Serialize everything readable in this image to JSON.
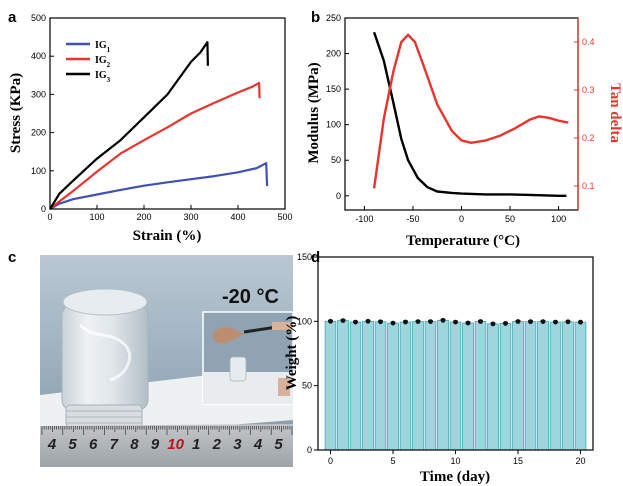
{
  "panels": {
    "a": "a",
    "b": "b",
    "c": "c",
    "d": "d"
  },
  "photo": {
    "temperature_label": "-20 °C",
    "ruler_numbers": [
      "4",
      "5",
      "6",
      "7",
      "8",
      "9",
      "10",
      "1",
      "2",
      "3",
      "4",
      "5"
    ]
  },
  "colors": {
    "ig1": "#3f51b5",
    "ig2": "#e8342e",
    "ig3": "#000000",
    "modulus": "#000000",
    "tandelta": "#e8342e",
    "bar_fill": "#9fd6de",
    "bar_stroke": "#3aa6b4"
  },
  "chart_data": [
    {
      "panel": "a",
      "type": "line",
      "xlabel": "Strain (%)",
      "ylabel": "Stress (KPa)",
      "xlim": [
        0,
        500
      ],
      "ylim": [
        0,
        500
      ],
      "xticks": [
        0,
        100,
        200,
        300,
        400,
        500
      ],
      "yticks": [
        0,
        100,
        200,
        300,
        400,
        500
      ],
      "legend": "top-left",
      "series": [
        {
          "name": "IG1",
          "name_base": "IG",
          "name_sub": "1",
          "color": "#3f51b5",
          "points": [
            [
              0,
              0
            ],
            [
              20,
              14
            ],
            [
              50,
              26
            ],
            [
              100,
              38
            ],
            [
              150,
              50
            ],
            [
              200,
              61
            ],
            [
              250,
              70
            ],
            [
              300,
              78
            ],
            [
              350,
              86
            ],
            [
              400,
              96
            ],
            [
              440,
              107
            ],
            [
              460,
              120
            ],
            [
              462,
              60
            ]
          ]
        },
        {
          "name": "IG2",
          "name_base": "IG",
          "name_sub": "2",
          "color": "#e8342e",
          "points": [
            [
              0,
              0
            ],
            [
              20,
              20
            ],
            [
              50,
              48
            ],
            [
              100,
              98
            ],
            [
              150,
              145
            ],
            [
              200,
              180
            ],
            [
              250,
              214
            ],
            [
              300,
              250
            ],
            [
              350,
              278
            ],
            [
              400,
              305
            ],
            [
              430,
              320
            ],
            [
              445,
              330
            ],
            [
              446,
              290
            ]
          ]
        },
        {
          "name": "IG3",
          "name_base": "IG",
          "name_sub": "3",
          "color": "#000000",
          "points": [
            [
              0,
              0
            ],
            [
              20,
              40
            ],
            [
              50,
              75
            ],
            [
              100,
              132
            ],
            [
              150,
              180
            ],
            [
              200,
              240
            ],
            [
              250,
              300
            ],
            [
              300,
              385
            ],
            [
              320,
              410
            ],
            [
              335,
              437
            ],
            [
              336,
              375
            ]
          ]
        }
      ]
    },
    {
      "panel": "b",
      "type": "line",
      "xlabel": "Temperature (°C)",
      "ylabel": "Modulus (MPa)",
      "y2label": "Tan delta",
      "xlim": [
        -120,
        120
      ],
      "ylim": [
        -20,
        250
      ],
      "y2lim": [
        0.05,
        0.45
      ],
      "xticks": [
        -100,
        -50,
        0,
        50,
        100
      ],
      "yticks": [
        0,
        50,
        100,
        150,
        200,
        250
      ],
      "y2ticks": [
        0.1,
        0.2,
        0.3,
        0.4
      ],
      "series": [
        {
          "name": "",
          "axis": "left",
          "color": "#000000",
          "points": [
            [
              -90,
              230
            ],
            [
              -80,
              190
            ],
            [
              -70,
              130
            ],
            [
              -62,
              80
            ],
            [
              -55,
              50
            ],
            [
              -45,
              25
            ],
            [
              -35,
              12
            ],
            [
              -25,
              6
            ],
            [
              -10,
              4
            ],
            [
              0,
              3
            ],
            [
              25,
              2
            ],
            [
              50,
              2
            ],
            [
              75,
              1
            ],
            [
              100,
              0
            ],
            [
              108,
              0
            ]
          ]
        },
        {
          "name": "",
          "axis": "right",
          "color": "#e8342e",
          "points": [
            [
              -90,
              0.095
            ],
            [
              -80,
              0.24
            ],
            [
              -70,
              0.34
            ],
            [
              -62,
              0.4
            ],
            [
              -55,
              0.415
            ],
            [
              -48,
              0.4
            ],
            [
              -38,
              0.345
            ],
            [
              -25,
              0.27
            ],
            [
              -10,
              0.215
            ],
            [
              0,
              0.195
            ],
            [
              10,
              0.19
            ],
            [
              25,
              0.195
            ],
            [
              40,
              0.205
            ],
            [
              55,
              0.22
            ],
            [
              70,
              0.238
            ],
            [
              80,
              0.245
            ],
            [
              90,
              0.242
            ],
            [
              100,
              0.236
            ],
            [
              110,
              0.232
            ]
          ]
        }
      ]
    },
    {
      "panel": "d",
      "type": "bar",
      "xlabel": "Time (day)",
      "ylabel": "Weight (%)",
      "xlim": [
        -1,
        21
      ],
      "ylim": [
        0,
        150
      ],
      "xticks": [
        0,
        5,
        10,
        15,
        20
      ],
      "yticks": [
        0,
        50,
        100,
        150
      ],
      "x": [
        0,
        1,
        2,
        3,
        4,
        5,
        6,
        7,
        8,
        9,
        10,
        11,
        12,
        13,
        14,
        15,
        16,
        17,
        18,
        19,
        20
      ],
      "values": [
        100.0,
        100.6,
        99.4,
        100.0,
        99.6,
        98.6,
        99.5,
        99.8,
        99.8,
        100.8,
        99.4,
        98.7,
        99.9,
        98.0,
        98.4,
        99.9,
        99.7,
        99.8,
        99.4,
        99.6,
        99.3
      ],
      "errors": [
        0.8,
        0.8,
        0.8,
        0.8,
        0.8,
        0.8,
        0.8,
        0.8,
        0.8,
        0.8,
        0.8,
        0.8,
        0.8,
        0.8,
        0.8,
        0.8,
        0.8,
        0.8,
        0.8,
        0.8,
        0.8
      ]
    }
  ]
}
